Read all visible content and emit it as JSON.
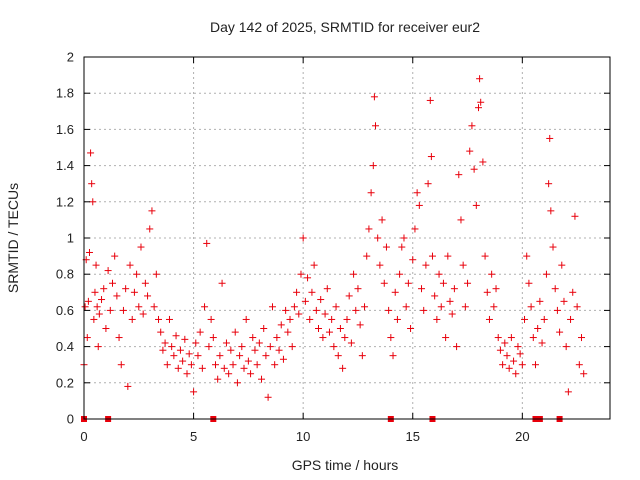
{
  "chart_data": {
    "type": "scatter",
    "title": "Day 142 of 2025, SRMTID for receiver eur2",
    "xlabel": "GPS time / hours",
    "ylabel": "SRMTID / TECUs",
    "xlim": [
      0,
      24
    ],
    "ylim": [
      0,
      2
    ],
    "xticks": [
      0,
      5,
      10,
      15,
      20
    ],
    "yticks": [
      0,
      0.2,
      0.4,
      0.6,
      0.8,
      1,
      1.2,
      1.4,
      1.6,
      1.8,
      2
    ],
    "xtick_labels": [
      "0",
      "5",
      "10",
      "15",
      "20"
    ],
    "ytick_labels": [
      "0",
      "0.2",
      "0.4",
      "0.6",
      "0.8",
      "1",
      "1.2",
      "1.4",
      "1.6",
      "1.8",
      "2"
    ],
    "grid": true,
    "marker": "plus",
    "color": "#e8000b",
    "series": [
      {
        "name": "eur2",
        "points": [
          [
            0.0,
            0.3
          ],
          [
            0.05,
            0.62
          ],
          [
            0.1,
            0.88
          ],
          [
            0.15,
            0.45
          ],
          [
            0.2,
            0.65
          ],
          [
            0.25,
            0.92
          ],
          [
            0.3,
            1.47
          ],
          [
            0.35,
            1.3
          ],
          [
            0.4,
            1.2
          ],
          [
            0.45,
            0.55
          ],
          [
            0.5,
            0.7
          ],
          [
            0.55,
            0.85
          ],
          [
            0.6,
            0.62
          ],
          [
            0.65,
            0.4
          ],
          [
            0.7,
            0.58
          ],
          [
            0.8,
            0.66
          ],
          [
            0.9,
            0.72
          ],
          [
            1.0,
            0.5
          ],
          [
            1.1,
            0.82
          ],
          [
            1.2,
            0.6
          ],
          [
            1.3,
            0.75
          ],
          [
            1.4,
            0.9
          ],
          [
            1.5,
            0.68
          ],
          [
            1.6,
            0.45
          ],
          [
            1.7,
            0.3
          ],
          [
            1.8,
            0.6
          ],
          [
            1.9,
            0.72
          ],
          [
            2.0,
            0.18
          ],
          [
            2.1,
            0.85
          ],
          [
            2.2,
            0.55
          ],
          [
            2.3,
            0.7
          ],
          [
            2.4,
            0.8
          ],
          [
            2.5,
            0.62
          ],
          [
            2.6,
            0.95
          ],
          [
            2.7,
            0.58
          ],
          [
            2.8,
            0.75
          ],
          [
            2.9,
            0.68
          ],
          [
            3.0,
            1.05
          ],
          [
            3.1,
            1.15
          ],
          [
            3.2,
            0.62
          ],
          [
            3.3,
            0.8
          ],
          [
            3.4,
            0.55
          ],
          [
            3.5,
            0.48
          ],
          [
            3.6,
            0.38
          ],
          [
            3.7,
            0.42
          ],
          [
            3.8,
            0.3
          ],
          [
            3.9,
            0.55
          ],
          [
            4.0,
            0.4
          ],
          [
            4.1,
            0.35
          ],
          [
            4.2,
            0.46
          ],
          [
            4.3,
            0.28
          ],
          [
            4.4,
            0.38
          ],
          [
            4.5,
            0.32
          ],
          [
            4.6,
            0.44
          ],
          [
            4.7,
            0.25
          ],
          [
            4.8,
            0.36
          ],
          [
            4.9,
            0.3
          ],
          [
            5.0,
            0.15
          ],
          [
            5.1,
            0.42
          ],
          [
            5.2,
            0.35
          ],
          [
            5.3,
            0.48
          ],
          [
            5.4,
            0.28
          ],
          [
            5.5,
            0.62
          ],
          [
            5.6,
            0.97
          ],
          [
            5.7,
            0.4
          ],
          [
            5.8,
            0.55
          ],
          [
            5.9,
            0.45
          ],
          [
            6.0,
            0.3
          ],
          [
            6.1,
            0.22
          ],
          [
            6.2,
            0.35
          ],
          [
            6.3,
            0.75
          ],
          [
            6.4,
            0.28
          ],
          [
            6.5,
            0.42
          ],
          [
            6.6,
            0.25
          ],
          [
            6.7,
            0.38
          ],
          [
            6.8,
            0.3
          ],
          [
            6.9,
            0.48
          ],
          [
            7.0,
            0.2
          ],
          [
            7.1,
            0.35
          ],
          [
            7.2,
            0.4
          ],
          [
            7.3,
            0.28
          ],
          [
            7.4,
            0.55
          ],
          [
            7.5,
            0.32
          ],
          [
            7.6,
            0.25
          ],
          [
            7.7,
            0.45
          ],
          [
            7.8,
            0.38
          ],
          [
            7.9,
            0.3
          ],
          [
            8.0,
            0.42
          ],
          [
            8.1,
            0.22
          ],
          [
            8.2,
            0.5
          ],
          [
            8.3,
            0.35
          ],
          [
            8.4,
            0.12
          ],
          [
            8.5,
            0.4
          ],
          [
            8.6,
            0.62
          ],
          [
            8.7,
            0.3
          ],
          [
            8.8,
            0.45
          ],
          [
            8.9,
            0.38
          ],
          [
            9.0,
            0.52
          ],
          [
            9.1,
            0.33
          ],
          [
            9.2,
            0.6
          ],
          [
            9.3,
            0.48
          ],
          [
            9.4,
            0.55
          ],
          [
            9.5,
            0.4
          ],
          [
            9.6,
            0.62
          ],
          [
            9.7,
            0.7
          ],
          [
            9.8,
            0.58
          ],
          [
            9.9,
            0.8
          ],
          [
            10.0,
            1.0
          ],
          [
            10.1,
            0.65
          ],
          [
            10.2,
            0.78
          ],
          [
            10.3,
            0.55
          ],
          [
            10.4,
            0.7
          ],
          [
            10.5,
            0.85
          ],
          [
            10.6,
            0.6
          ],
          [
            10.7,
            0.5
          ],
          [
            10.8,
            0.66
          ],
          [
            10.9,
            0.45
          ],
          [
            11.0,
            0.58
          ],
          [
            11.1,
            0.72
          ],
          [
            11.2,
            0.48
          ],
          [
            11.3,
            0.55
          ],
          [
            11.4,
            0.4
          ],
          [
            11.5,
            0.62
          ],
          [
            11.6,
            0.35
          ],
          [
            11.7,
            0.5
          ],
          [
            11.8,
            0.28
          ],
          [
            11.9,
            0.45
          ],
          [
            12.0,
            0.55
          ],
          [
            12.1,
            0.68
          ],
          [
            12.2,
            0.42
          ],
          [
            12.3,
            0.8
          ],
          [
            12.4,
            0.6
          ],
          [
            12.5,
            0.72
          ],
          [
            12.6,
            0.52
          ],
          [
            12.7,
            0.35
          ],
          [
            12.8,
            0.62
          ],
          [
            12.9,
            0.9
          ],
          [
            13.0,
            1.05
          ],
          [
            13.1,
            1.25
          ],
          [
            13.2,
            1.4
          ],
          [
            13.25,
            1.78
          ],
          [
            13.3,
            1.62
          ],
          [
            13.4,
            1.0
          ],
          [
            13.5,
            0.85
          ],
          [
            13.6,
            1.1
          ],
          [
            13.7,
            0.75
          ],
          [
            13.8,
            0.95
          ],
          [
            13.9,
            0.6
          ],
          [
            14.0,
            0.45
          ],
          [
            14.1,
            0.35
          ],
          [
            14.2,
            0.7
          ],
          [
            14.3,
            0.55
          ],
          [
            14.4,
            0.8
          ],
          [
            14.5,
            0.95
          ],
          [
            14.6,
            1.0
          ],
          [
            14.7,
            0.62
          ],
          [
            14.8,
            0.75
          ],
          [
            14.9,
            0.5
          ],
          [
            15.0,
            0.88
          ],
          [
            15.1,
            1.05
          ],
          [
            15.2,
            1.25
          ],
          [
            15.3,
            1.18
          ],
          [
            15.4,
            0.72
          ],
          [
            15.5,
            0.6
          ],
          [
            15.6,
            0.85
          ],
          [
            15.7,
            1.3
          ],
          [
            15.8,
            1.76
          ],
          [
            15.85,
            1.45
          ],
          [
            15.9,
            0.9
          ],
          [
            16.0,
            0.68
          ],
          [
            16.1,
            0.55
          ],
          [
            16.2,
            0.8
          ],
          [
            16.3,
            0.62
          ],
          [
            16.4,
            0.75
          ],
          [
            16.5,
            0.45
          ],
          [
            16.6,
            0.9
          ],
          [
            16.7,
            0.65
          ],
          [
            16.8,
            0.58
          ],
          [
            16.9,
            0.72
          ],
          [
            17.0,
            0.4
          ],
          [
            17.1,
            1.35
          ],
          [
            17.2,
            1.1
          ],
          [
            17.3,
            0.85
          ],
          [
            17.4,
            0.62
          ],
          [
            17.5,
            0.75
          ],
          [
            17.6,
            1.48
          ],
          [
            17.7,
            1.62
          ],
          [
            17.8,
            1.38
          ],
          [
            17.9,
            1.18
          ],
          [
            18.0,
            1.72
          ],
          [
            18.05,
            1.88
          ],
          [
            18.1,
            1.75
          ],
          [
            18.2,
            1.42
          ],
          [
            18.3,
            0.9
          ],
          [
            18.4,
            0.7
          ],
          [
            18.5,
            0.55
          ],
          [
            18.6,
            0.8
          ],
          [
            18.7,
            0.62
          ],
          [
            18.8,
            0.72
          ],
          [
            18.9,
            0.45
          ],
          [
            19.0,
            0.38
          ],
          [
            19.1,
            0.3
          ],
          [
            19.2,
            0.42
          ],
          [
            19.3,
            0.35
          ],
          [
            19.4,
            0.28
          ],
          [
            19.5,
            0.45
          ],
          [
            19.6,
            0.32
          ],
          [
            19.7,
            0.25
          ],
          [
            19.8,
            0.4
          ],
          [
            19.9,
            0.36
          ],
          [
            20.0,
            0.3
          ],
          [
            20.1,
            0.55
          ],
          [
            20.2,
            0.9
          ],
          [
            20.3,
            0.75
          ],
          [
            20.4,
            0.62
          ],
          [
            20.5,
            0.45
          ],
          [
            20.6,
            0.3
          ],
          [
            20.7,
            0.5
          ],
          [
            20.8,
            0.65
          ],
          [
            20.9,
            0.42
          ],
          [
            21.0,
            0.55
          ],
          [
            21.1,
            0.8
          ],
          [
            21.2,
            1.3
          ],
          [
            21.25,
            1.55
          ],
          [
            21.3,
            1.15
          ],
          [
            21.4,
            0.95
          ],
          [
            21.5,
            0.72
          ],
          [
            21.6,
            0.6
          ],
          [
            21.7,
            0.48
          ],
          [
            21.8,
            0.85
          ],
          [
            21.9,
            0.65
          ],
          [
            22.0,
            0.4
          ],
          [
            22.1,
            0.15
          ],
          [
            22.2,
            0.55
          ],
          [
            22.3,
            0.7
          ],
          [
            22.4,
            1.12
          ],
          [
            22.5,
            0.62
          ],
          [
            22.6,
            0.3
          ],
          [
            22.7,
            0.45
          ],
          [
            22.8,
            0.25
          ]
        ]
      }
    ],
    "zero_markers": [
      0.0,
      1.1,
      5.9,
      14.0,
      15.9,
      20.6,
      20.8,
      21.7
    ]
  }
}
